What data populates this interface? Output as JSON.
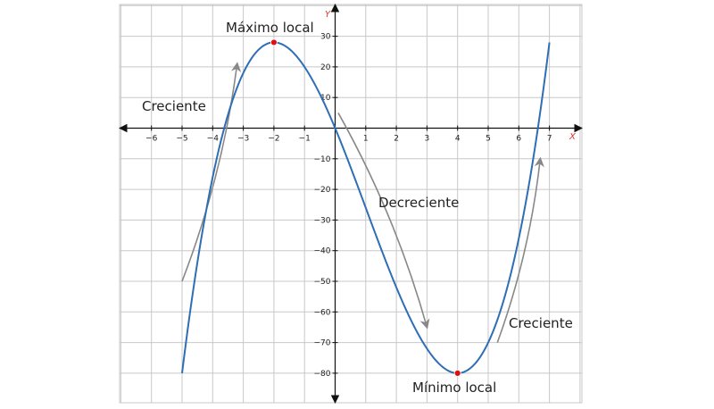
{
  "chart_data": {
    "type": "line",
    "xlabel": "X",
    "ylabel": "Y",
    "xlim": [
      -7,
      8
    ],
    "ylim": [
      -90,
      40
    ],
    "grid": true,
    "x_ticks": [
      -6,
      -5,
      -4,
      -3,
      -2,
      -1,
      1,
      2,
      3,
      4,
      5,
      6,
      7
    ],
    "y_ticks": [
      30,
      20,
      10,
      -10,
      -20,
      -30,
      -40,
      -50,
      -60,
      -70,
      -80
    ],
    "series": [
      {
        "function": "y = x^3 - 3x^2 - 24x",
        "x_range": [
          -5,
          7
        ],
        "color": "#2f6eb5"
      }
    ],
    "points": [
      {
        "x": -2,
        "y": 28,
        "label": "Máximo local",
        "color": "#e01010"
      },
      {
        "x": 4,
        "y": -80,
        "label": "Mínimo local",
        "color": "#e01010"
      }
    ],
    "annotations": [
      {
        "text": "Creciente",
        "arrow_from": [
          -5,
          -50
        ],
        "arrow_to": [
          -3.2,
          21
        ]
      },
      {
        "text": "Decreciente",
        "arrow_from": [
          0.1,
          5
        ],
        "arrow_to": [
          3,
          -65
        ]
      },
      {
        "text": "Creciente",
        "arrow_from": [
          5.3,
          -70
        ],
        "arrow_to": [
          6.7,
          -10
        ]
      }
    ]
  }
}
